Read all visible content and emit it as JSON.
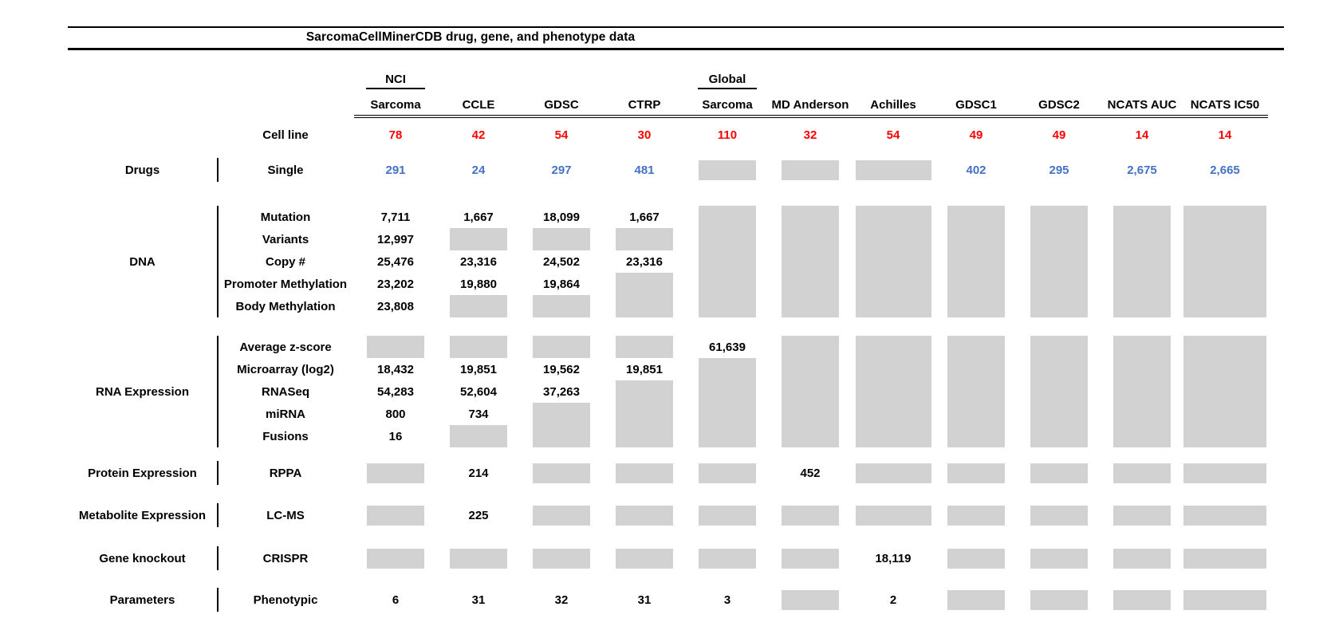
{
  "title": "SarcomaCellMinerCDB drug, gene, and phenotype data",
  "cell_line_row": {
    "label": "Cell line"
  },
  "columns": [
    {
      "top": "NCI",
      "label": "Sarcoma",
      "count": "78"
    },
    {
      "top": "",
      "label": "CCLE",
      "count": "42"
    },
    {
      "top": "",
      "label": "GDSC",
      "count": "54"
    },
    {
      "top": "",
      "label": "CTRP",
      "count": "30"
    },
    {
      "top": "Global",
      "label": "Sarcoma",
      "count": "110"
    },
    {
      "top": "",
      "label": "MD Anderson",
      "count": "32"
    },
    {
      "top": "",
      "label": "Achilles",
      "count": "54"
    },
    {
      "top": "",
      "label": "GDSC1",
      "count": "49"
    },
    {
      "top": "",
      "label": "GDSC2",
      "count": "49"
    },
    {
      "top": "",
      "label": "NCATS AUC",
      "count": "14"
    },
    {
      "top": "",
      "label": "NCATS IC50",
      "count": "14"
    }
  ],
  "sections": [
    {
      "category": "Drugs",
      "value_style": "blue",
      "rows": [
        {
          "label": "Single",
          "values": [
            "291",
            "24",
            "297",
            "481",
            null,
            null,
            null,
            "402",
            "295",
            "2,675",
            "2,665"
          ]
        }
      ]
    },
    {
      "category": "DNA",
      "value_style": "black",
      "rows": [
        {
          "label": "Mutation",
          "values": [
            "7,711",
            "1,667",
            "18,099",
            "1,667",
            null,
            null,
            null,
            null,
            null,
            null,
            null
          ]
        },
        {
          "label": "Variants",
          "values": [
            "12,997",
            null,
            null,
            null,
            null,
            null,
            null,
            null,
            null,
            null,
            null
          ]
        },
        {
          "label": "Copy #",
          "values": [
            "25,476",
            "23,316",
            "24,502",
            "23,316",
            null,
            null,
            null,
            null,
            null,
            null,
            null
          ]
        },
        {
          "label": "Promoter Methylation",
          "values": [
            "23,202",
            "19,880",
            "19,864",
            null,
            null,
            null,
            null,
            null,
            null,
            null,
            null
          ]
        },
        {
          "label": "Body Methylation",
          "values": [
            "23,808",
            null,
            null,
            null,
            null,
            null,
            null,
            null,
            null,
            null,
            null
          ]
        }
      ]
    },
    {
      "category": "RNA Expression",
      "value_style": "black",
      "rows": [
        {
          "label": "Average z-score",
          "values": [
            null,
            null,
            null,
            null,
            "61,639",
            null,
            null,
            null,
            null,
            null,
            null
          ]
        },
        {
          "label": "Microarray (log2)",
          "values": [
            "18,432",
            "19,851",
            "19,562",
            "19,851",
            null,
            null,
            null,
            null,
            null,
            null,
            null
          ]
        },
        {
          "label": "RNASeq",
          "values": [
            "54,283",
            "52,604",
            "37,263",
            null,
            null,
            null,
            null,
            null,
            null,
            null,
            null
          ]
        },
        {
          "label": "miRNA",
          "values": [
            "800",
            "734",
            null,
            null,
            null,
            null,
            null,
            null,
            null,
            null,
            null
          ]
        },
        {
          "label": "Fusions",
          "values": [
            "16",
            null,
            null,
            null,
            null,
            null,
            null,
            null,
            null,
            null,
            null
          ]
        }
      ]
    },
    {
      "category": "Protein Expression",
      "value_style": "black",
      "rows": [
        {
          "label": "RPPA",
          "values": [
            null,
            "214",
            null,
            null,
            null,
            "452",
            null,
            null,
            null,
            null,
            null
          ]
        }
      ]
    },
    {
      "category": "Metabolite Expression",
      "value_style": "black",
      "rows": [
        {
          "label": "LC-MS",
          "values": [
            null,
            "225",
            null,
            null,
            null,
            null,
            null,
            null,
            null,
            null,
            null
          ]
        }
      ]
    },
    {
      "category": "Gene knockout",
      "value_style": "black",
      "rows": [
        {
          "label": "CRISPR",
          "values": [
            null,
            null,
            null,
            null,
            null,
            null,
            "18,119",
            null,
            null,
            null,
            null
          ]
        }
      ]
    },
    {
      "category": "Parameters",
      "value_style": "black",
      "rows": [
        {
          "label": "Phenotypic",
          "values": [
            "6",
            "31",
            "32",
            "31",
            "3",
            null,
            "2",
            null,
            null,
            null,
            null
          ]
        }
      ]
    }
  ],
  "colors": {
    "cell_line_count_red": "#FF0000",
    "drug_value_blue": "#4472C4",
    "missing_data_gray": "#D2D2D2",
    "ink_black": "#000000"
  }
}
